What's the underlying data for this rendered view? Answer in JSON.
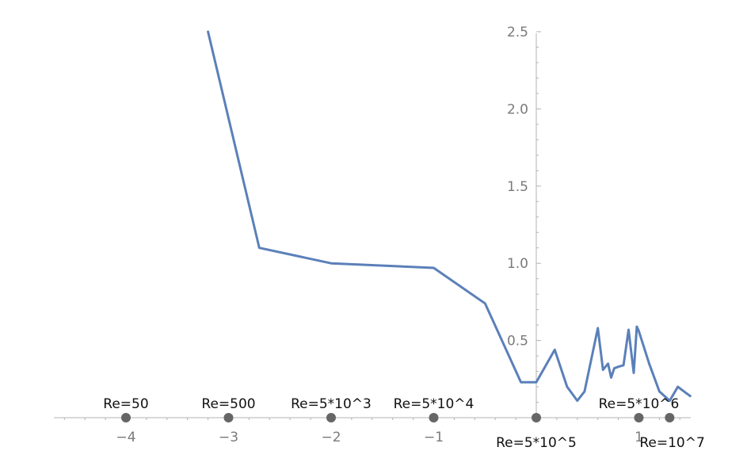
{
  "chart_data": {
    "type": "line",
    "title": "",
    "xlabel": "",
    "ylabel": "",
    "xlim": [
      -4.7,
      1.5
    ],
    "ylim": [
      0,
      2.55
    ],
    "grid": false,
    "axes_origin": [
      0,
      0
    ],
    "series": [
      {
        "color": "#5b80b9",
        "x": [
          -3.2,
          -2.7,
          -2.0,
          -1.0,
          -0.5,
          -0.15,
          0.0,
          0.18,
          0.3,
          0.4,
          0.47,
          0.6,
          0.65,
          0.7,
          0.73,
          0.76,
          0.8,
          0.85,
          0.9,
          0.95,
          0.98,
          1.0,
          1.1,
          1.2,
          1.3,
          1.38,
          1.44,
          1.5
        ],
        "y": [
          2.5,
          1.1,
          1.0,
          0.97,
          0.74,
          0.23,
          0.23,
          0.44,
          0.2,
          0.11,
          0.17,
          0.58,
          0.31,
          0.35,
          0.26,
          0.32,
          0.33,
          0.34,
          0.57,
          0.29,
          0.59,
          0.56,
          0.35,
          0.17,
          0.11,
          0.2,
          0.17,
          0.14
        ]
      }
    ],
    "x_ticks": [
      {
        "value": -4,
        "label": "−4"
      },
      {
        "value": -3,
        "label": "−3"
      },
      {
        "value": -2,
        "label": "−2"
      },
      {
        "value": -1,
        "label": "−1"
      },
      {
        "value": 1,
        "label": "1"
      }
    ],
    "y_ticks": [
      {
        "value": 0.5,
        "label": "0.5"
      },
      {
        "value": 1.0,
        "label": "1.0"
      },
      {
        "value": 1.5,
        "label": "1.5"
      },
      {
        "value": 2.0,
        "label": "2.0"
      },
      {
        "value": 2.5,
        "label": "2.5"
      }
    ],
    "annotations": [
      {
        "x": -4,
        "label": "Re=50",
        "position": "above"
      },
      {
        "x": -3,
        "label": "Re=500",
        "position": "above"
      },
      {
        "x": -2,
        "label": "Re=5*10^3",
        "position": "above"
      },
      {
        "x": -1,
        "label": "Re=5*10^4",
        "position": "above"
      },
      {
        "x": 0,
        "label": "Re=5*10^5",
        "position": "below"
      },
      {
        "x": 1,
        "label": "Re=5*10^6",
        "position": "above"
      },
      {
        "x": 1.3,
        "label": "Re=10^7",
        "position": "below"
      }
    ],
    "colors": {
      "line": "#5b80b9",
      "axis": "#b3b3b3",
      "tick_text": "#7a7a7a",
      "marker": "#666666",
      "annotation": "#111111"
    }
  }
}
